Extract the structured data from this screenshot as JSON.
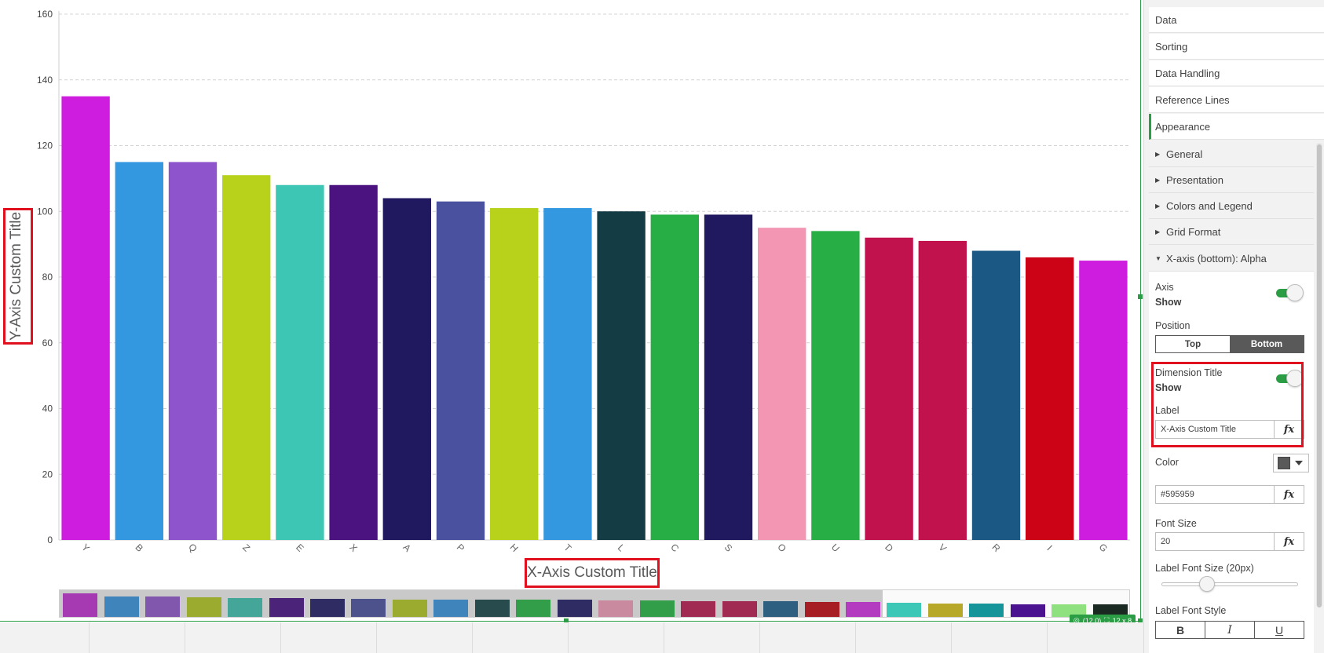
{
  "chart_data": {
    "type": "bar",
    "categories": [
      "Y",
      "B",
      "Q",
      "Z",
      "E",
      "X",
      "A",
      "P",
      "H",
      "T",
      "L",
      "C",
      "S",
      "O",
      "U",
      "D",
      "V",
      "R",
      "I",
      "G"
    ],
    "values": [
      135,
      115,
      115,
      111,
      108,
      108,
      104,
      103,
      101,
      101,
      100,
      99,
      99,
      95,
      94,
      92,
      91,
      88,
      86,
      85
    ],
    "colors": [
      "#cf1ddf",
      "#3498e0",
      "#8e54cc",
      "#b8d21c",
      "#3dc6b4",
      "#4a137f",
      "#21195f",
      "#4a519f",
      "#b8d21c",
      "#3498e0",
      "#143c44",
      "#27ae44",
      "#21195f",
      "#f296b4",
      "#27ae44",
      "#c2124e",
      "#c2124e",
      "#1b5884",
      "#cc0216",
      "#cf1ddf"
    ],
    "ylim": [
      0,
      160
    ],
    "yticks": [
      0,
      20,
      40,
      60,
      80,
      100,
      120,
      140,
      160
    ],
    "xlabel": "X-Axis Custom Title",
    "ylabel": "Y-Axis Custom Title",
    "grid": true,
    "mini_chart": {
      "values": [
        135,
        115,
        115,
        111,
        108,
        108,
        104,
        103,
        101,
        101,
        100,
        99,
        99,
        95,
        94,
        92,
        91,
        88,
        86,
        85,
        80,
        78,
        76,
        74,
        72,
        70
      ],
      "colors": [
        "#a63ab2",
        "#3f84ba",
        "#8157ae",
        "#9aab2f",
        "#44a699",
        "#4b2378",
        "#2e2c62",
        "#4e528c",
        "#9aab2f",
        "#3f84ba",
        "#284b4e",
        "#339e4a",
        "#2e2c62",
        "#c98a9f",
        "#339e4a",
        "#a02a52",
        "#a02a52",
        "#2e5e80",
        "#a61d24",
        "#b23bc0",
        "#3cc7b6",
        "#b8a82a",
        "#159499",
        "#4c1390",
        "#8fe07e",
        "#1a2a22"
      ]
    }
  },
  "panel": {
    "sections": [
      "Data",
      "Sorting",
      "Data Handling",
      "Reference Lines",
      "Appearance"
    ],
    "subsections": [
      "General",
      "Presentation",
      "Colors and Legend",
      "Grid Format",
      "X-axis (bottom): Alpha"
    ],
    "axis_label": "Axis",
    "axis_value": "Show",
    "position_label": "Position",
    "position_options": [
      "Top",
      "Bottom"
    ],
    "position_selected": "Bottom",
    "dimension_title_label": "Dimension Title",
    "dimension_title_value": "Show",
    "label_label": "Label",
    "label_value": "X-Axis Custom Title",
    "color_label": "Color",
    "color_hex": "#595959",
    "font_size_label": "Font Size",
    "font_size_value": "20",
    "label_font_size_label": "Label Font Size (20px)",
    "label_font_size_value": 20,
    "label_font_style_label": "Label Font Style",
    "style_buttons": [
      "B",
      "I",
      "U"
    ],
    "fx": "fx"
  },
  "status": {
    "position": "(12,0)",
    "size": "12 x 8"
  }
}
